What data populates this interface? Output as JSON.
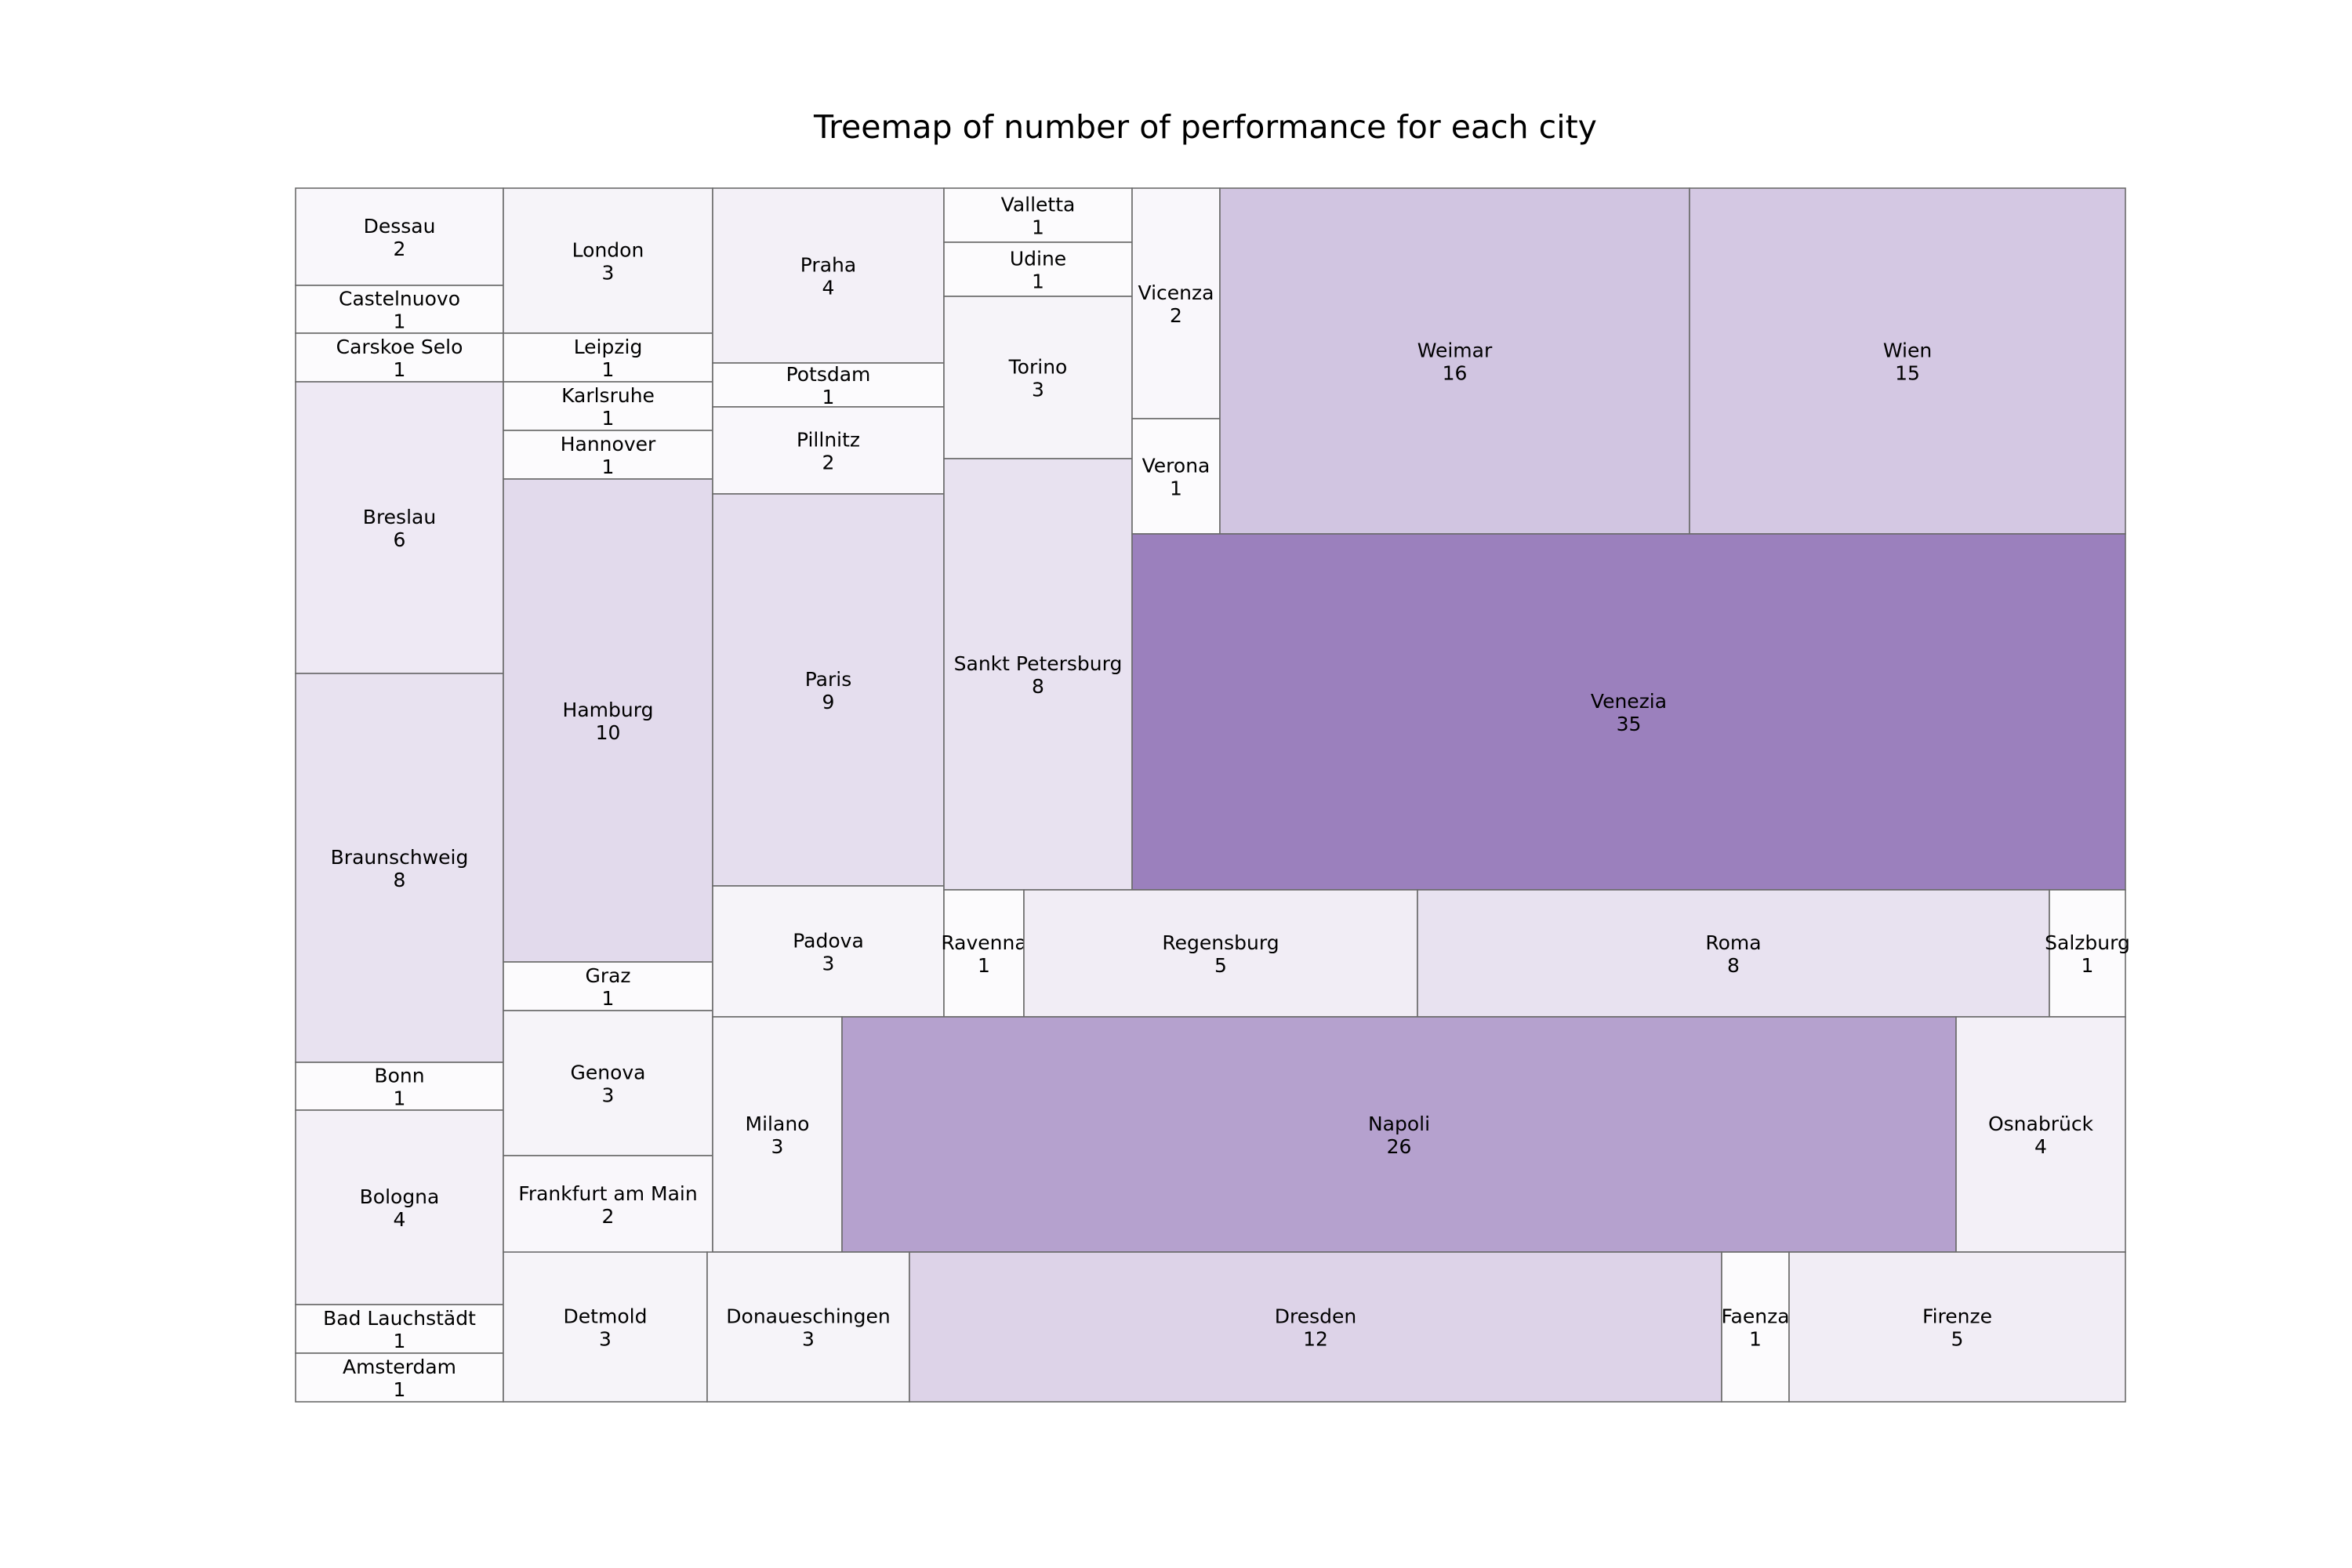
{
  "chart_data": {
    "type": "treemap",
    "title": "Treemap of number of performance for each city",
    "color_scale": {
      "min": "#fcfbfd",
      "max": "#9b80bd"
    },
    "cells": [
      {
        "label": "Dessau",
        "value": 2
      },
      {
        "label": "Castelnuovo",
        "value": 1
      },
      {
        "label": "Carskoe Selo",
        "value": 1
      },
      {
        "label": "Breslau",
        "value": 6
      },
      {
        "label": "Braunschweig",
        "value": 8
      },
      {
        "label": "Bonn",
        "value": 1
      },
      {
        "label": "Bologna",
        "value": 4
      },
      {
        "label": "Bad Lauchstädt",
        "value": 1
      },
      {
        "label": "Amsterdam",
        "value": 1
      },
      {
        "label": "London",
        "value": 3
      },
      {
        "label": "Leipzig",
        "value": 1
      },
      {
        "label": "Karlsruhe",
        "value": 1
      },
      {
        "label": "Hannover",
        "value": 1
      },
      {
        "label": "Hamburg",
        "value": 10
      },
      {
        "label": "Graz",
        "value": 1
      },
      {
        "label": "Genova",
        "value": 3
      },
      {
        "label": "Frankfurt am Main",
        "value": 2
      },
      {
        "label": "Praha",
        "value": 4
      },
      {
        "label": "Potsdam",
        "value": 1
      },
      {
        "label": "Pillnitz",
        "value": 2
      },
      {
        "label": "Paris",
        "value": 9
      },
      {
        "label": "Padova",
        "value": 3
      },
      {
        "label": "Valletta",
        "value": 1
      },
      {
        "label": "Udine",
        "value": 1
      },
      {
        "label": "Torino",
        "value": 3
      },
      {
        "label": "Sankt Petersburg",
        "value": 8
      },
      {
        "label": "Vicenza",
        "value": 2
      },
      {
        "label": "Verona",
        "value": 1
      },
      {
        "label": "Weimar",
        "value": 16
      },
      {
        "label": "Wien",
        "value": 15
      },
      {
        "label": "Venezia",
        "value": 35
      },
      {
        "label": "Ravenna",
        "value": 1
      },
      {
        "label": "Regensburg",
        "value": 5
      },
      {
        "label": "Roma",
        "value": 8
      },
      {
        "label": "Salzburg",
        "value": 1
      },
      {
        "label": "Milano",
        "value": 3
      },
      {
        "label": "Napoli",
        "value": 26
      },
      {
        "label": "Osnabrück",
        "value": 4
      },
      {
        "label": "Detmold",
        "value": 3
      },
      {
        "label": "Donaueschingen",
        "value": 3
      },
      {
        "label": "Dresden",
        "value": 12
      },
      {
        "label": "Faenza",
        "value": 1
      },
      {
        "label": "Firenze",
        "value": 5
      }
    ]
  }
}
